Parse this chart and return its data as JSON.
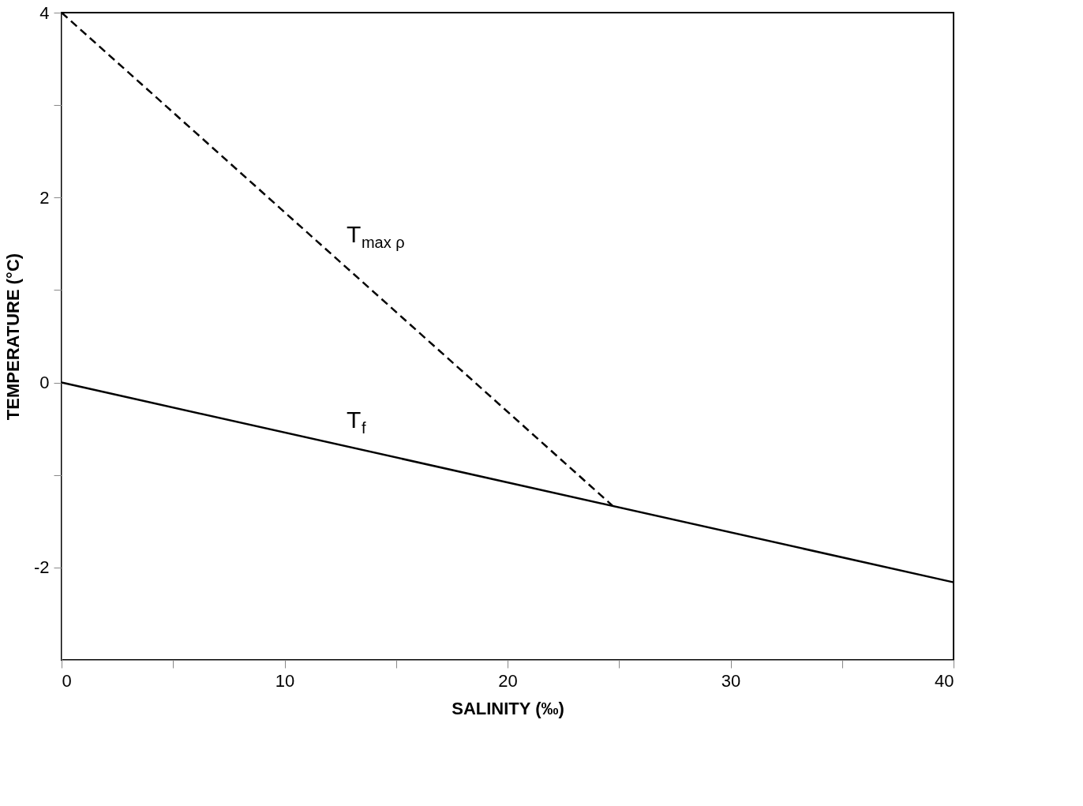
{
  "chart_data": {
    "type": "line",
    "xlabel": "SALINITY (‰)",
    "ylabel": "TEMPERATURE (°C)",
    "xlim": [
      0,
      40
    ],
    "ylim": [
      -3,
      4
    ],
    "xticks": [
      0,
      {
        "value": 5,
        "label": null
      },
      10,
      {
        "value": 15,
        "label": null
      },
      20,
      {
        "value": 25,
        "label": null
      },
      30,
      {
        "value": 35,
        "label": null
      },
      40
    ],
    "yticks": [
      -2,
      {
        "value": -1,
        "label": null
      },
      0,
      {
        "value": 1,
        "label": null
      },
      2,
      {
        "value": 3,
        "label": null
      },
      4
    ],
    "grid": false,
    "marker": "none",
    "series": [
      {
        "name": "T$_{max ρ}$",
        "color": "#000000",
        "line_style": "dashed",
        "x": [
          0,
          24.7
        ],
        "values": [
          4,
          -1.33
        ]
      },
      {
        "name": "T$_{f}$",
        "color": "#000000",
        "line_style": "solid",
        "x": [
          0,
          40
        ],
        "values": [
          0,
          -2.16
        ]
      }
    ]
  }
}
